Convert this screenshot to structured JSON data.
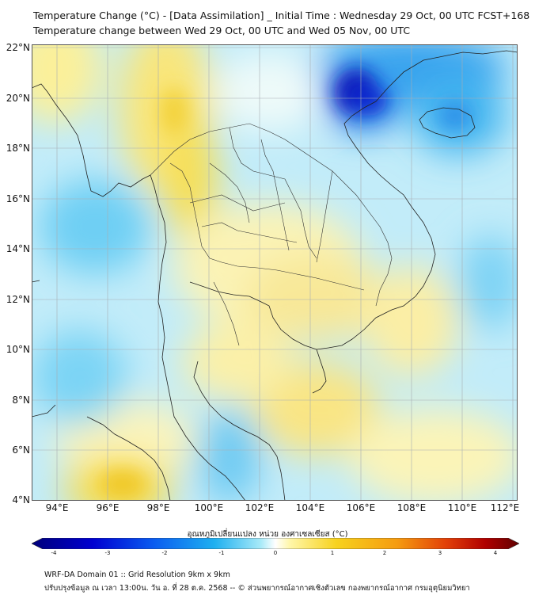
{
  "header": {
    "line1": "Temperature Change (°C) - [Data Assimilation] _ Initial Time : Wednesday 29 Oct, 00 UTC FCST+168",
    "line2": "Temperature change between Wed 29 Oct, 00 UTC and Wed 05 Nov, 00 UTC"
  },
  "axes": {
    "lat_labels": [
      "22°N",
      "20°N",
      "18°N",
      "16°N",
      "14°N",
      "12°N",
      "10°N",
      "8°N",
      "6°N",
      "4°N"
    ],
    "lon_labels": [
      "94°E",
      "96°E",
      "98°E",
      "100°E",
      "102°E",
      "104°E",
      "106°E",
      "108°E",
      "110°E",
      "112°E"
    ],
    "lat_range": [
      4,
      22
    ],
    "lon_range": [
      93,
      112.2
    ]
  },
  "colorbar": {
    "title": "อุณหภูมิเปลี่ยนแปลง หน่วย องศาเซลเซียส (°C)",
    "ticks": [
      "-4",
      "-3",
      "-2",
      "-1",
      "0",
      "1",
      "2",
      "3",
      "4"
    ],
    "range": [
      -4,
      4
    ],
    "colors": [
      "#00007a",
      "#0000d0",
      "#0a5cf0",
      "#1fb0f0",
      "#a8eaf8",
      "#ffffff",
      "#fff6a8",
      "#f7d21e",
      "#f59b10",
      "#e24008",
      "#b00000",
      "#600000"
    ]
  },
  "footer": {
    "line1": "WRF-DA Domain 01 :: Grid Resolution 9km x 9km",
    "line2": "ปรับปรุงข้อมูล ณ เวลา 13:00น. วัน อ. ที่ 28 ต.ค. 2568 -- © ส่วนพยากรณ์อากาศเชิงตัวเลข กองพยากรณ์อากาศ กรมอุตุนิยมวิทยา"
  }
}
